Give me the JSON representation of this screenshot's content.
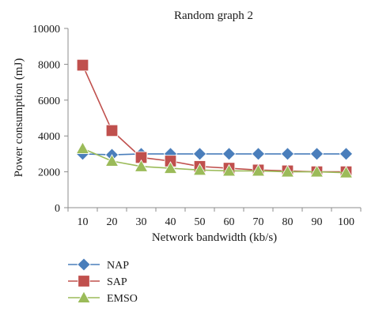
{
  "chart_data": {
    "type": "line",
    "title": "Random graph 2",
    "xlabel": "Network bandwidth (kb/s)",
    "ylabel": "Power consumption (mJ)",
    "categories": [
      "10",
      "20",
      "30",
      "40",
      "50",
      "60",
      "70",
      "80",
      "90",
      "100"
    ],
    "ylim": [
      0,
      10000
    ],
    "yticks": [
      "0",
      "2000",
      "4000",
      "6000",
      "8000",
      "10000"
    ],
    "grid": false,
    "legend_position": "bottom-left",
    "series": [
      {
        "name": "NAP",
        "marker": "diamond",
        "color": "#4a7ebb",
        "values": [
          3000,
          2950,
          3000,
          3000,
          3000,
          3000,
          3000,
          3000,
          3000,
          3000
        ]
      },
      {
        "name": "SAP",
        "marker": "square",
        "color": "#c0504d",
        "values": [
          7950,
          4300,
          2800,
          2600,
          2300,
          2200,
          2100,
          2050,
          2000,
          2000
        ]
      },
      {
        "name": "EMSO",
        "marker": "triangle",
        "color": "#9bbb59",
        "values": [
          3300,
          2600,
          2300,
          2200,
          2100,
          2050,
          2050,
          2000,
          2000,
          1950
        ]
      }
    ]
  }
}
